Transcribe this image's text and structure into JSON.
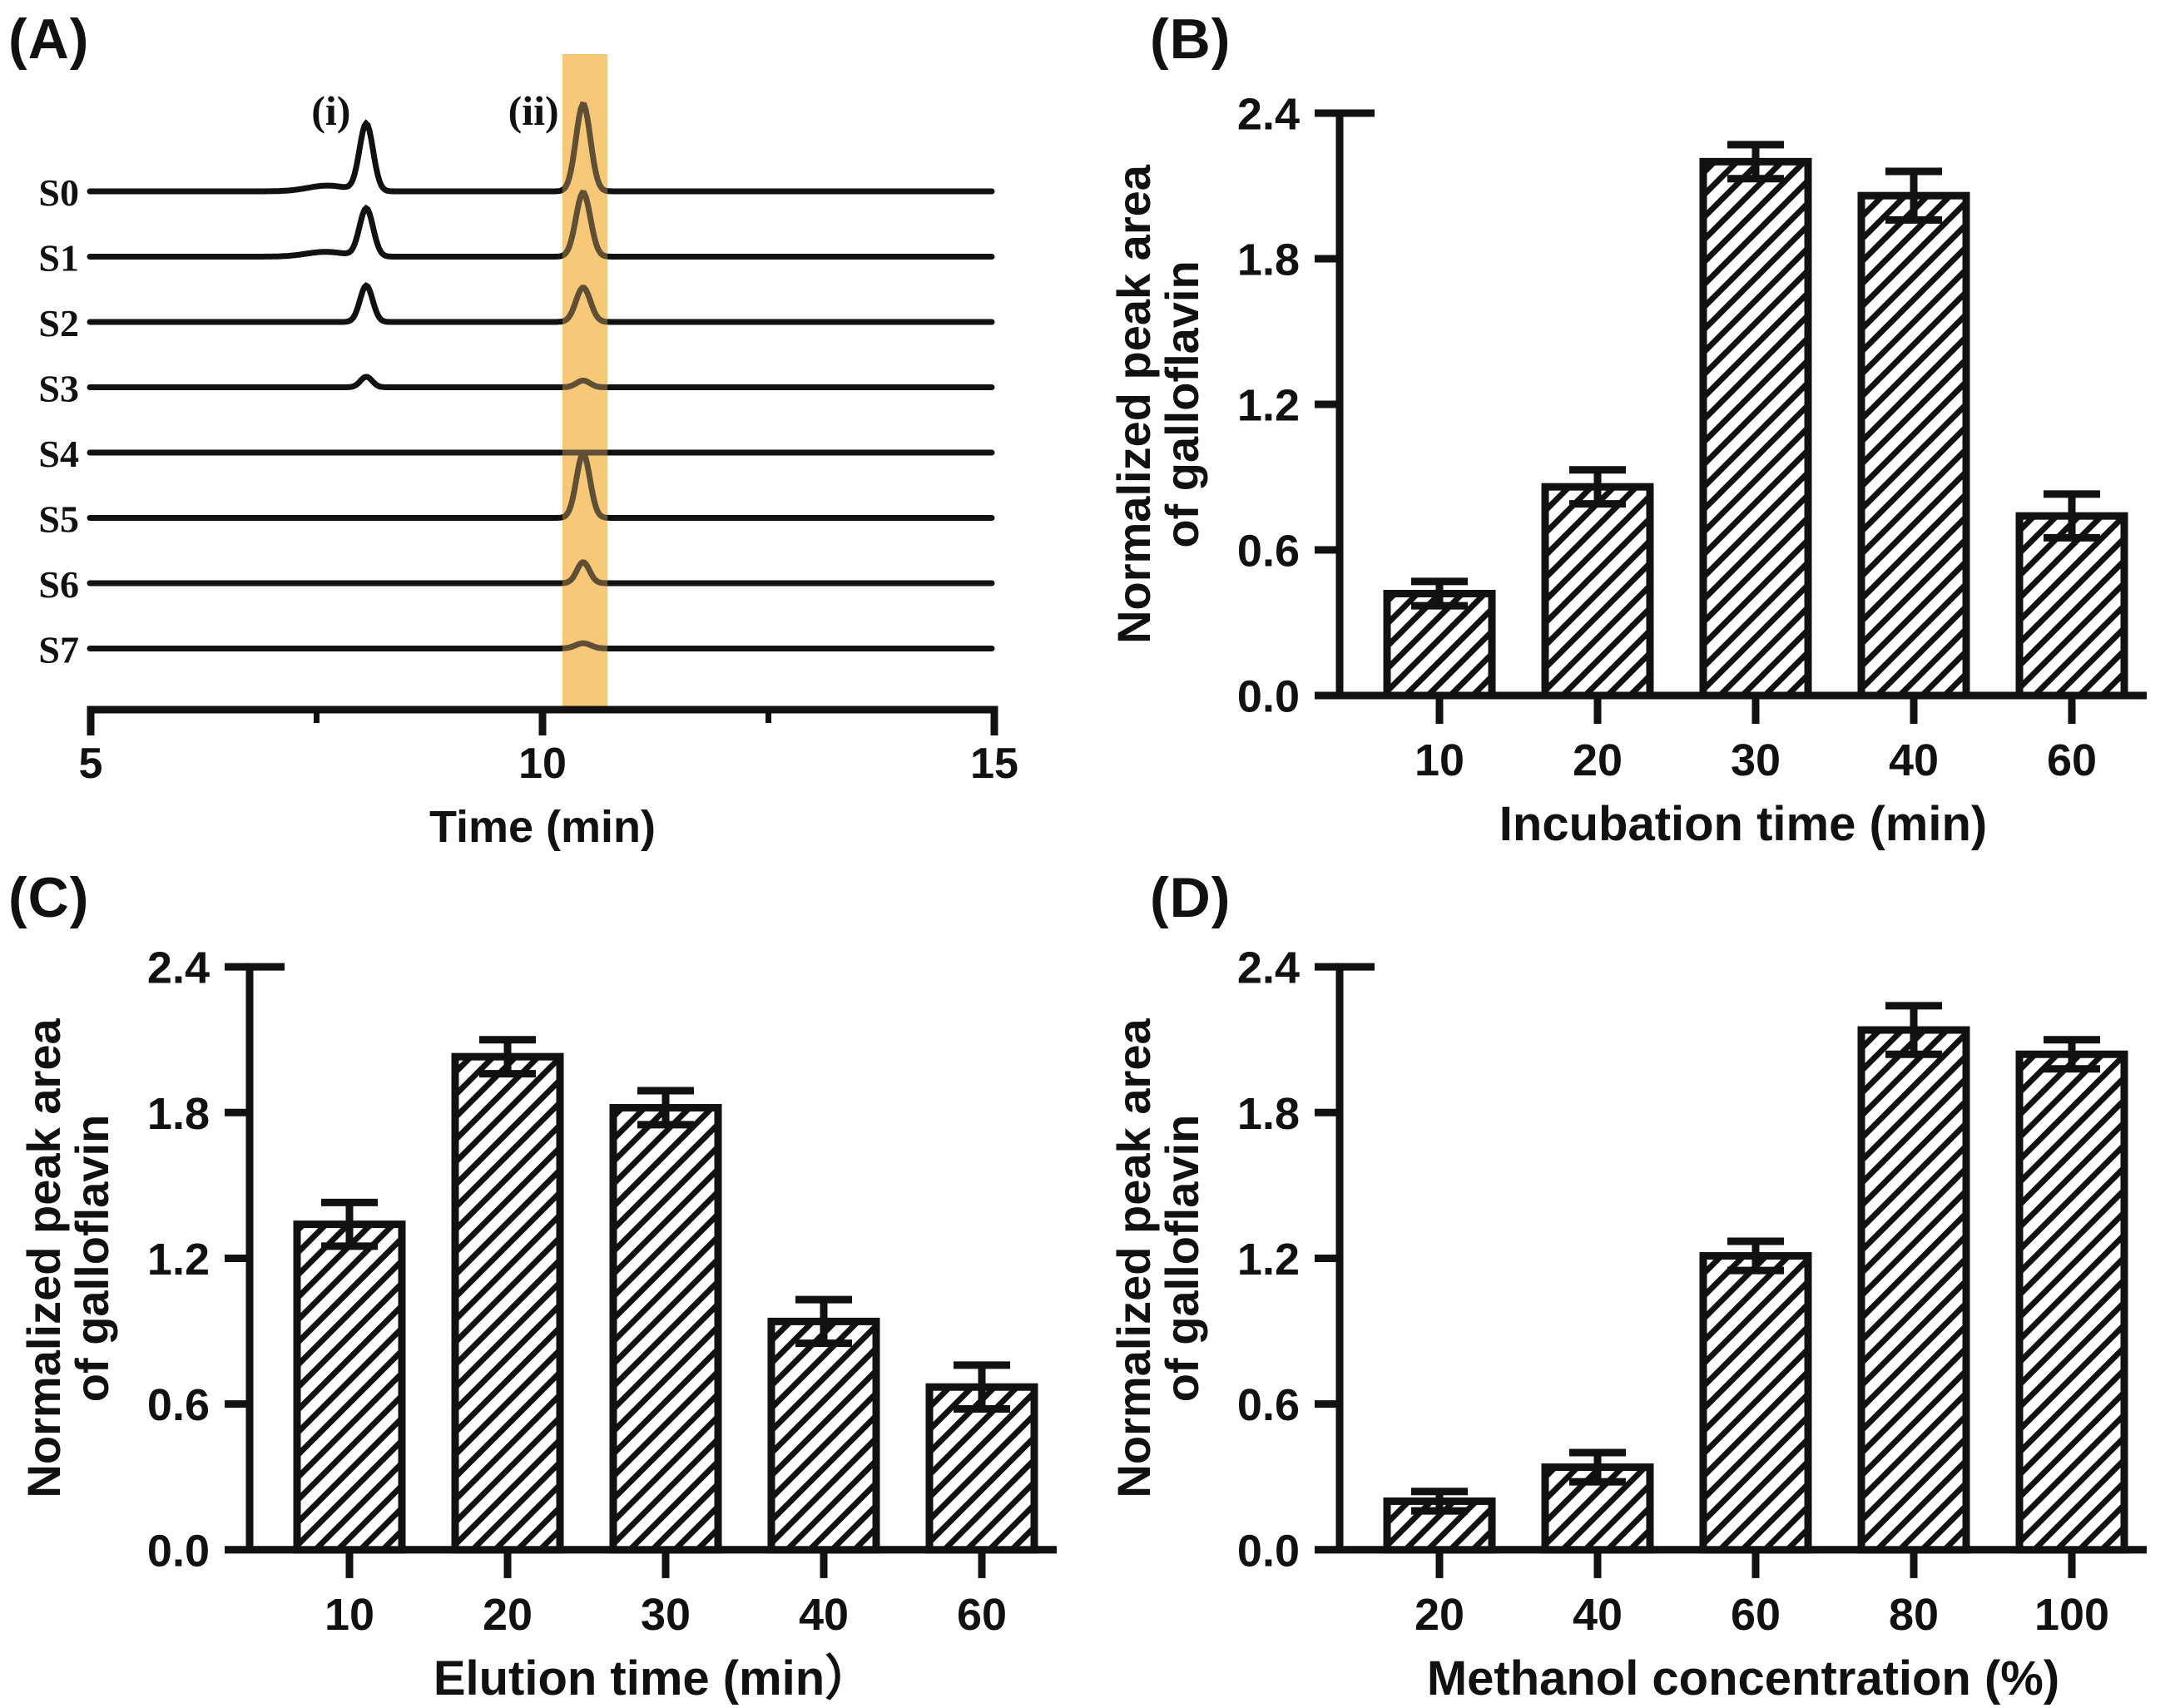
{
  "figure_background": "#ffffff",
  "ink_color": "#111111",
  "chart_data": [
    {
      "panel": "A",
      "panel_label": "(A)",
      "type": "line",
      "subtype": "stacked-chromatograms",
      "xlabel": "Time (min)",
      "xlim": [
        5,
        15
      ],
      "xticks": [
        "5",
        "10",
        "15"
      ],
      "minor_xticks": [
        7.5,
        12.5
      ],
      "peak_annotations": [
        {
          "text": "(i)",
          "t": 7.66
        },
        {
          "text": "(ii)",
          "t": 9.9
        }
      ],
      "highlight_band": {
        "t_start": 10.22,
        "t_end": 10.72,
        "color": "#F7C878"
      },
      "peak_positions_min": {
        "peak_i": 8.05,
        "peak_ii": 10.45
      },
      "traces": [
        {
          "name": "S0",
          "peaks": [
            {
              "t": 7.62,
              "h": 0.06,
              "w": 0.22
            },
            {
              "t": 8.05,
              "h": 0.7,
              "w": 0.075
            },
            {
              "t": 10.45,
              "h": 0.91,
              "w": 0.08
            }
          ]
        },
        {
          "name": "S1",
          "peaks": [
            {
              "t": 7.6,
              "h": 0.05,
              "w": 0.22
            },
            {
              "t": 8.05,
              "h": 0.5,
              "w": 0.075
            },
            {
              "t": 10.45,
              "h": 0.67,
              "w": 0.08
            }
          ]
        },
        {
          "name": "S2",
          "peaks": [
            {
              "t": 8.05,
              "h": 0.38,
              "w": 0.07
            },
            {
              "t": 10.45,
              "h": 0.36,
              "w": 0.08
            }
          ]
        },
        {
          "name": "S3",
          "peaks": [
            {
              "t": 8.05,
              "h": 0.11,
              "w": 0.065
            },
            {
              "t": 10.45,
              "h": 0.07,
              "w": 0.075
            }
          ]
        },
        {
          "name": "S4",
          "peaks": []
        },
        {
          "name": "S5",
          "peaks": [
            {
              "t": 10.45,
              "h": 0.67,
              "w": 0.075
            }
          ]
        },
        {
          "name": "S6",
          "peaks": [
            {
              "t": 10.45,
              "h": 0.22,
              "w": 0.07
            }
          ]
        },
        {
          "name": "S7",
          "peaks": [
            {
              "t": 10.45,
              "h": 0.055,
              "w": 0.085
            }
          ]
        }
      ]
    },
    {
      "panel": "B",
      "panel_label": "(B)",
      "type": "bar",
      "categories": [
        "10",
        "20",
        "30",
        "40",
        "60"
      ],
      "values": [
        0.42,
        0.86,
        2.2,
        2.06,
        0.74
      ],
      "errors": [
        0.05,
        0.07,
        0.07,
        0.1,
        0.09
      ],
      "xlabel": "Incubation time (min)",
      "ylabel_lines": [
        "Normalized peak area",
        "of galloflavin"
      ],
      "yticks": [
        "0.0",
        "0.6",
        "1.2",
        "1.8",
        "2.4"
      ],
      "ylim": [
        0,
        2.4
      ],
      "grid": false,
      "bar_fill": "hatched-diagonal",
      "bar_color": "#111111"
    },
    {
      "panel": "C",
      "panel_label": "(C)",
      "type": "bar",
      "categories": [
        "10",
        "20",
        "30",
        "40",
        "60"
      ],
      "values": [
        1.34,
        2.03,
        1.82,
        0.94,
        0.67
      ],
      "errors": [
        0.09,
        0.07,
        0.07,
        0.09,
        0.09
      ],
      "xlabel": "Elution time (min）",
      "ylabel_lines": [
        "Normalized peak area",
        "of galloflavin"
      ],
      "yticks": [
        "0.0",
        "0.6",
        "1.2",
        "1.8",
        "2.4"
      ],
      "ylim": [
        0,
        2.4
      ],
      "grid": false,
      "bar_fill": "hatched-diagonal",
      "bar_color": "#111111"
    },
    {
      "panel": "D",
      "panel_label": "(D)",
      "type": "bar",
      "categories": [
        "20",
        "40",
        "60",
        "80",
        "100"
      ],
      "values": [
        0.2,
        0.34,
        1.21,
        2.14,
        2.04
      ],
      "errors": [
        0.04,
        0.06,
        0.06,
        0.1,
        0.06
      ],
      "xlabel": "Methanol concentration (%)",
      "ylabel_lines": [
        "Normalized peak area",
        "of galloflavin"
      ],
      "yticks": [
        "0.0",
        "0.6",
        "1.2",
        "1.8",
        "2.4"
      ],
      "ylim": [
        0,
        2.4
      ],
      "grid": false,
      "bar_fill": "hatched-diagonal",
      "bar_color": "#111111"
    }
  ]
}
